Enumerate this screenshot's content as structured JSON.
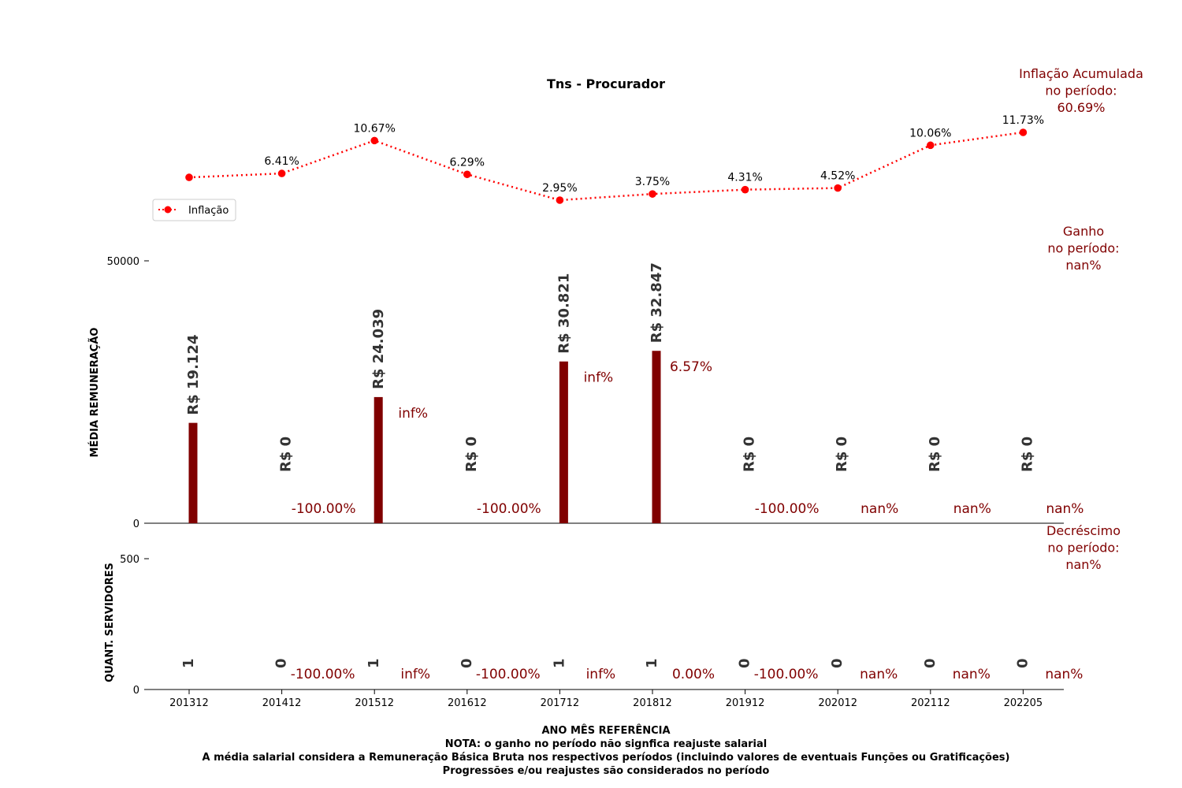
{
  "chart_data": [
    {
      "type": "line",
      "title": "Tns - Procurador",
      "legend": {
        "position": "left",
        "entries": [
          "Inflação"
        ]
      },
      "series": [
        {
          "name": "Inflação",
          "values": [
            null,
            6.41,
            10.67,
            6.29,
            2.95,
            3.75,
            4.31,
            4.52,
            10.06,
            11.73
          ],
          "point_values": [
            5.9,
            6.41,
            10.67,
            6.29,
            2.95,
            3.75,
            4.31,
            4.52,
            10.06,
            11.73
          ],
          "labels": [
            "",
            "6.41%",
            "10.67%",
            "6.29%",
            "2.95%",
            "3.75%",
            "4.31%",
            "4.52%",
            "10.06%",
            "11.73%"
          ]
        }
      ],
      "accent_color": "#ff0000",
      "side_note": [
        "Inflação Acumulada",
        "no período:",
        "60.69%"
      ]
    },
    {
      "type": "bar",
      "ylabel": "MÉDIA REMUNERAÇÃO",
      "ylim": [
        0,
        50000
      ],
      "yticks": [
        "0",
        "50000"
      ],
      "values": [
        19124,
        0,
        24039,
        0,
        30821,
        32847,
        0,
        0,
        0,
        0
      ],
      "value_labels": [
        "R$ 19.124",
        "R$ 0",
        "R$ 24.039",
        "R$ 0",
        "R$ 30.821",
        "R$ 32.847",
        "R$ 0",
        "R$ 0",
        "R$ 0",
        "R$ 0"
      ],
      "change_labels": [
        "",
        "-100.00%",
        "inf%",
        "-100.00%",
        "inf%",
        "6.57%",
        "-100.00%",
        "nan%",
        "nan%",
        "nan%"
      ],
      "bar_color": "#800000",
      "side_note": [
        "Ganho",
        "no período:",
        "nan%"
      ]
    },
    {
      "type": "bar",
      "ylabel": "QUANT. SERVIDORES",
      "ylim": [
        0,
        500
      ],
      "yticks": [
        "0",
        "500"
      ],
      "values": [
        1,
        0,
        1,
        0,
        1,
        1,
        0,
        0,
        0,
        0
      ],
      "value_labels": [
        "1",
        "0",
        "1",
        "0",
        "1",
        "1",
        "0",
        "0",
        "0",
        "0"
      ],
      "change_labels": [
        "",
        "-100.00%",
        "inf%",
        "-100.00%",
        "inf%",
        "0.00%",
        "-100.00%",
        "nan%",
        "nan%",
        "nan%"
      ],
      "side_note": [
        "Decréscimo",
        "no período:",
        "nan%"
      ]
    }
  ],
  "categories": [
    "201312",
    "201412",
    "201512",
    "201612",
    "201712",
    "201812",
    "201912",
    "202012",
    "202112",
    "202205"
  ],
  "xlabel": "ANO MÊS REFERÊNCIA",
  "notes": [
    "NOTA: o ganho no período não signfica reajuste salarial",
    "A média salarial considera a Remuneração Básica Bruta nos respectivos períodos (incluindo valores de eventuais Funções ou Gratificações)",
    "Progressões e/ou reajustes são considerados no período"
  ],
  "note_color": "#800000"
}
